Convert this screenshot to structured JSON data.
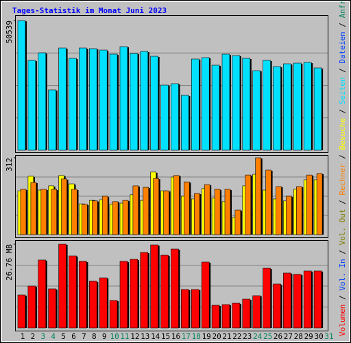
{
  "chart_data": {
    "type": "bar",
    "title": "Tages-Statistik im Monat Juni 2023",
    "categories": [
      "1",
      "2",
      "3",
      "4",
      "5",
      "6",
      "7",
      "8",
      "9",
      "10",
      "11",
      "12",
      "13",
      "14",
      "15",
      "16",
      "17",
      "18",
      "19",
      "20",
      "21",
      "22",
      "23",
      "24",
      "25",
      "26",
      "27",
      "28",
      "29",
      "30",
      "31"
    ],
    "category_colors": [
      "#000000",
      "#000000",
      "#00805c",
      "#00805c",
      "#000000",
      "#000000",
      "#000000",
      "#000000",
      "#000000",
      "#00805c",
      "#00805c",
      "#000000",
      "#000000",
      "#000000",
      "#000000",
      "#000000",
      "#00805c",
      "#00805c",
      "#000000",
      "#000000",
      "#000000",
      "#000000",
      "#000000",
      "#00805c",
      "#00805c",
      "#000000",
      "#000000",
      "#000000",
      "#000000",
      "#000000",
      "#00805c"
    ],
    "legend_separator": " / ",
    "grid": true,
    "panels": [
      {
        "ylim": [
          0,
          50539
        ],
        "yticks": [
          50539
        ],
        "series": [
          {
            "name": "Anfragen",
            "color": "#00805c",
            "values": [
              null,
              null,
              null,
              null,
              null,
              null,
              null,
              null,
              null,
              null,
              null,
              null,
              null,
              null,
              null,
              null,
              null,
              null,
              null,
              null,
              null,
              null,
              null,
              null,
              null,
              null,
              null,
              null,
              null,
              null,
              null
            ]
          },
          {
            "name": "Dateien",
            "color": "#0040ff",
            "values": [
              null,
              null,
              null,
              null,
              null,
              null,
              null,
              null,
              null,
              null,
              null,
              null,
              null,
              null,
              null,
              null,
              null,
              null,
              null,
              null,
              null,
              null,
              null,
              null,
              null,
              null,
              null,
              null,
              null,
              null,
              null
            ]
          },
          {
            "name": "Seiten",
            "color": "#00e0ff",
            "values": [
              50539,
              35030,
              37970,
              23530,
              39840,
              35830,
              39840,
              39580,
              39040,
              37440,
              40380,
              37710,
              38510,
              36630,
              25400,
              25940,
              21390,
              35560,
              36100,
              33160,
              37440,
              36900,
              35830,
              31020,
              35030,
              32620,
              33690,
              33960,
              34230,
              32090,
              null
            ]
          }
        ]
      },
      {
        "ylim": [
          0,
          312
        ],
        "yticks": [
          312
        ],
        "series": [
          {
            "name": "Besuche",
            "color": "#ffff00",
            "values": [
              178,
              237,
              181,
              198,
              240,
              206,
              125,
              139,
              142,
              123,
              128,
              162,
              139,
              254,
              178,
              234,
              156,
              145,
              187,
              148,
              134,
              70,
              198,
              245,
              181,
              145,
              137,
              184,
              223,
              223,
              null
            ]
          },
          {
            "name": "Rechner",
            "color": "#ff8000",
            "values": [
              184,
              212,
              184,
              184,
              226,
              184,
              123,
              137,
              156,
              134,
              139,
              198,
              192,
              228,
              178,
              240,
              214,
              167,
              203,
              184,
              184,
              100,
              242,
              312,
              262,
              195,
              156,
              195,
              242,
              248,
              null
            ]
          }
        ]
      },
      {
        "ylim": [
          0,
          26.76
        ],
        "yticks": [
          {
            "value": 26.76,
            "label": "26.76 MB"
          }
        ],
        "series": [
          {
            "name": "Vol. Out",
            "color": "#808000",
            "values": [
              null,
              null,
              null,
              null,
              null,
              null,
              null,
              null,
              null,
              null,
              null,
              null,
              null,
              null,
              null,
              null,
              null,
              null,
              null,
              null,
              null,
              null,
              null,
              null,
              null,
              null,
              null,
              null,
              null,
              null,
              null
            ]
          },
          {
            "name": "Vol. In",
            "color": "#0040ff",
            "values": [
              null,
              null,
              null,
              null,
              null,
              null,
              null,
              null,
              null,
              null,
              null,
              null,
              null,
              null,
              null,
              null,
              null,
              null,
              null,
              null,
              null,
              null,
              null,
              null,
              null,
              null,
              null,
              null,
              null,
              null,
              null
            ]
          },
          {
            "name": "Volumen",
            "color": "#ff0000",
            "values": [
              10.53,
              13.38,
              21.72,
              12.5,
              26.76,
              23.03,
              21.28,
              14.92,
              16.01,
              8.77,
              21.28,
              21.93,
              24.13,
              26.54,
              23.25,
              25.22,
              12.28,
              12.28,
              21.06,
              7.24,
              7.46,
              7.9,
              9.21,
              10.31,
              19.08,
              14.04,
              17.55,
              17.11,
              18.21,
              18.21,
              null
            ]
          }
        ]
      }
    ]
  }
}
